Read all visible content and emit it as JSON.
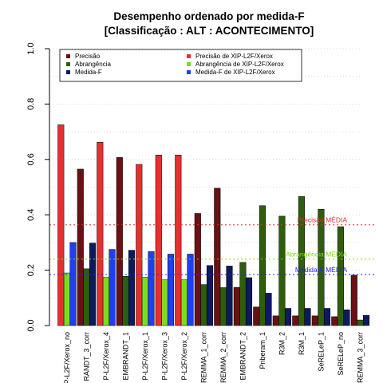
{
  "chart_data": {
    "type": "bar",
    "title": "Desempenho ordenado por medida-F",
    "subtitle": "[Classificação : ALT : ACONTECIMENTO]",
    "xlabel": "",
    "ylabel": "",
    "ylim": [
      0,
      1
    ],
    "yticks": [
      "0.0",
      "0.2",
      "0.4",
      "0.6",
      "0.8",
      "1.0"
    ],
    "grid": "horizontal dotted",
    "legend_placement": "top",
    "categories": [
      "P-L2F/Xerox_no",
      "RANDT_3_corr",
      "P-L2F/Xerox_4",
      "EMBRANDT_1",
      "P-L2F/Xerox_1",
      "P-L2F/Xerox_3",
      "P-L2F/Xerox_2",
      "REMMA_1_corr",
      "REMMA_2_corr",
      "EMBRANDT_2",
      "Priberam_1",
      "R3M_2",
      "R3M_1",
      "SeRELeP_1",
      "SeRELeP_no",
      "REMMA_3_corr"
    ],
    "highlight": [
      true,
      false,
      true,
      false,
      true,
      true,
      true,
      false,
      false,
      false,
      false,
      false,
      false,
      false,
      false,
      false
    ],
    "series": [
      {
        "name": "Precisão",
        "values": [
          0.725,
          0.565,
          0.662,
          0.607,
          0.582,
          0.616,
          0.616,
          0.405,
          0.496,
          0.138,
          0.067,
          0.035,
          0.035,
          0.035,
          0.032,
          0.182
        ]
      },
      {
        "name": "Abrangência",
        "values": [
          0.19,
          0.205,
          0.174,
          0.178,
          0.174,
          0.165,
          0.165,
          0.148,
          0.137,
          0.228,
          0.433,
          0.395,
          0.466,
          0.42,
          0.357,
          0.02
        ]
      },
      {
        "name": "Medida-F",
        "values": [
          0.3,
          0.298,
          0.275,
          0.272,
          0.267,
          0.258,
          0.258,
          0.217,
          0.215,
          0.173,
          0.117,
          0.062,
          0.062,
          0.062,
          0.057,
          0.037
        ]
      }
    ],
    "legend": {
      "left": [
        "Precisão",
        "Abrangência",
        "Medida-F"
      ],
      "right": [
        "Precisão  de  XIP-L2F/Xerox",
        "Abrangência  de  XIP-L2F/Xerox",
        "Medida-F  de  XIP-L2F/Xerox"
      ]
    },
    "reference_lines": [
      {
        "label": "Precisão MÉDIA",
        "value": 0.364,
        "color": "#e03030"
      },
      {
        "label": "Abrangência MÉDIA",
        "value": 0.24,
        "color": "#7ddc1f"
      },
      {
        "label": "Medida-F MÉDIA",
        "value": 0.184,
        "color": "#2424e6"
      }
    ],
    "colors": {
      "precisao": "#6b1014",
      "abrangencia": "#2e5e0c",
      "medida": "#0c1a60",
      "precisao_hl": "#e53030",
      "abrangencia_hl": "#7ddc1f",
      "medida_hl": "#1f3ff0"
    }
  }
}
